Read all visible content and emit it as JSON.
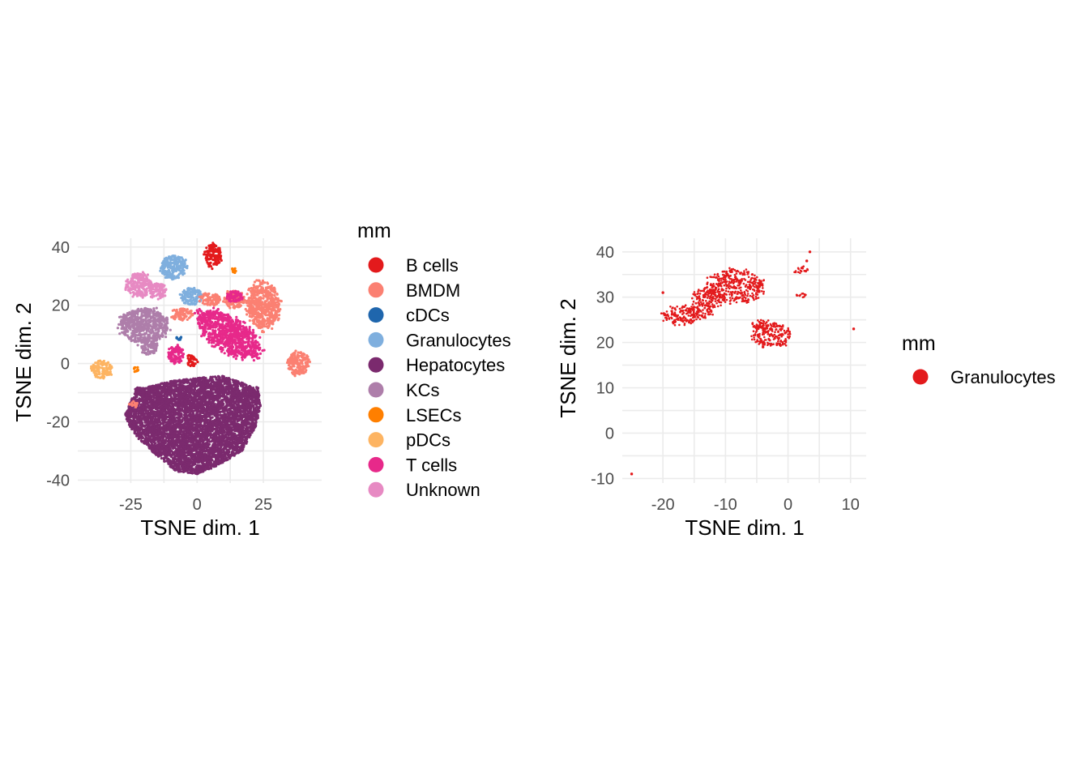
{
  "chart_data": [
    {
      "type": "scatter",
      "xlabel": "TSNE dim. 1",
      "ylabel": "TSNE dim. 2",
      "xlim": [
        -45,
        47
      ],
      "ylim": [
        -41,
        43
      ],
      "xticks": [
        -25,
        0,
        25
      ],
      "yticks": [
        -40,
        -20,
        0,
        20,
        40
      ],
      "grid": true,
      "legend": {
        "title": "mm",
        "placement": "right",
        "entries": [
          {
            "name": "B cells",
            "color": "#e31a1c"
          },
          {
            "name": "BMDM",
            "color": "#fb8072"
          },
          {
            "name": "cDCs",
            "color": "#1f66ad"
          },
          {
            "name": "Granulocytes",
            "color": "#7fafde"
          },
          {
            "name": "Hepatocytes",
            "color": "#7b2a6e"
          },
          {
            "name": "KCs",
            "color": "#ae7eaa"
          },
          {
            "name": "LSECs",
            "color": "#ff7f00"
          },
          {
            "name": "pDCs",
            "color": "#fdb462"
          },
          {
            "name": "T cells",
            "color": "#e7298a"
          },
          {
            "name": "Unknown",
            "color": "#e78ac3"
          }
        ]
      },
      "clusters": [
        {
          "series": "Hepatocytes",
          "shape": "polygon",
          "outline": [
            [
              -27,
              -17
            ],
            [
              -23,
              -9
            ],
            [
              -10,
              -6
            ],
            [
              0,
              -5
            ],
            [
              10,
              -4
            ],
            [
              18,
              -7
            ],
            [
              23,
              -8
            ],
            [
              24,
              -15
            ],
            [
              22,
              -22
            ],
            [
              17,
              -30
            ],
            [
              8,
              -35
            ],
            [
              0,
              -38
            ],
            [
              -8,
              -37
            ],
            [
              -16,
              -31
            ],
            [
              -23,
              -25
            ],
            [
              -27,
              -19
            ]
          ]
        },
        {
          "series": "Hepatocytes",
          "shape": "ellipse",
          "cx": -22,
          "cy": -9,
          "rx": 2,
          "ry": 1
        },
        {
          "series": "KCs",
          "shape": "ellipse",
          "cx": -20,
          "cy": 13,
          "rx": 9,
          "ry": 6
        },
        {
          "series": "KCs",
          "shape": "ellipse",
          "cx": -18,
          "cy": 6,
          "rx": 3,
          "ry": 3
        },
        {
          "series": "Unknown",
          "shape": "ellipse",
          "cx": -22,
          "cy": 27,
          "rx": 5,
          "ry": 4
        },
        {
          "series": "Unknown",
          "shape": "ellipse",
          "cx": -15,
          "cy": 25,
          "rx": 3,
          "ry": 3
        },
        {
          "series": "Granulocytes",
          "shape": "ellipse",
          "cx": -9,
          "cy": 33,
          "rx": 5,
          "ry": 4
        },
        {
          "series": "Granulocytes",
          "shape": "ellipse",
          "cx": -2,
          "cy": 23,
          "rx": 4,
          "ry": 3
        },
        {
          "series": "B cells",
          "shape": "ellipse",
          "cx": 6,
          "cy": 37,
          "rx": 3,
          "ry": 4
        },
        {
          "series": "BMDM",
          "shape": "ellipse",
          "cx": 25,
          "cy": 20,
          "rx": 6,
          "ry": 8
        },
        {
          "series": "BMDM",
          "shape": "ellipse",
          "cx": 38,
          "cy": 0,
          "rx": 4,
          "ry": 4
        },
        {
          "series": "BMDM",
          "shape": "ellipse",
          "cx": 14,
          "cy": 22,
          "rx": 4,
          "ry": 3
        },
        {
          "series": "BMDM",
          "shape": "ellipse",
          "cx": -6,
          "cy": 17,
          "rx": 4,
          "ry": 2
        },
        {
          "series": "BMDM",
          "shape": "ellipse",
          "cx": 5,
          "cy": 22,
          "rx": 4,
          "ry": 2
        },
        {
          "series": "BMDM",
          "shape": "ellipse",
          "cx": -24,
          "cy": -14,
          "rx": 1.5,
          "ry": 1
        },
        {
          "series": "T cells",
          "shape": "ellipse",
          "cx": 12,
          "cy": 10,
          "rx": 13,
          "ry": 6,
          "angle": -28
        },
        {
          "series": "T cells",
          "shape": "ellipse",
          "cx": -8,
          "cy": 3,
          "rx": 3,
          "ry": 3
        },
        {
          "series": "T cells",
          "shape": "ellipse",
          "cx": 14,
          "cy": 23,
          "rx": 3,
          "ry": 2
        },
        {
          "series": "B cells",
          "shape": "ellipse",
          "cx": -2,
          "cy": 1,
          "rx": 2,
          "ry": 2
        },
        {
          "series": "pDCs",
          "shape": "ellipse",
          "cx": -36,
          "cy": -2,
          "rx": 4,
          "ry": 3
        },
        {
          "series": "LSECs",
          "shape": "ellipse",
          "cx": -23,
          "cy": -2,
          "rx": 1,
          "ry": 1
        },
        {
          "series": "LSECs",
          "shape": "ellipse",
          "cx": 14,
          "cy": 32,
          "rx": 1,
          "ry": 1
        },
        {
          "series": "cDCs",
          "shape": "ellipse",
          "cx": -7,
          "cy": 9,
          "rx": 1,
          "ry": 1
        }
      ]
    },
    {
      "type": "scatter",
      "xlabel": "TSNE dim. 1",
      "ylabel": "TSNE dim. 2",
      "xlim": [
        -26.5,
        12.5
      ],
      "ylim": [
        -11,
        43
      ],
      "xticks": [
        -20,
        -10,
        0,
        10
      ],
      "yticks": [
        -10,
        0,
        10,
        20,
        30,
        40
      ],
      "grid": true,
      "legend": {
        "title": "mm",
        "placement": "right",
        "entries": [
          {
            "name": "Granulocytes",
            "color": "#e31a1c"
          }
        ]
      },
      "clusters": [
        {
          "series": "Granulocytes",
          "shape": "ellipse",
          "cx": -8.5,
          "cy": 32.5,
          "rx": 4.5,
          "ry": 3.5
        },
        {
          "series": "Granulocytes",
          "shape": "ellipse",
          "cx": -12.5,
          "cy": 30,
          "rx": 2.5,
          "ry": 2
        },
        {
          "series": "Granulocytes",
          "shape": "ellipse",
          "cx": -2.5,
          "cy": 21.5,
          "rx": 3,
          "ry": 2.5
        },
        {
          "series": "Granulocytes",
          "shape": "ellipse",
          "cx": -4,
          "cy": 24,
          "rx": 2,
          "ry": 1
        },
        {
          "series": "Granulocytes",
          "shape": "ellipse",
          "cx": -17,
          "cy": 26,
          "rx": 3,
          "ry": 2
        },
        {
          "series": "Granulocytes",
          "shape": "ellipse",
          "cx": -14,
          "cy": 27,
          "rx": 2,
          "ry": 1.5
        },
        {
          "series": "Granulocytes",
          "shape": "ellipse",
          "cx": 2,
          "cy": 36,
          "rx": 1,
          "ry": 0.8
        },
        {
          "series": "Granulocytes",
          "shape": "ellipse",
          "cx": 2,
          "cy": 30.5,
          "rx": 0.8,
          "ry": 0.6
        },
        {
          "series": "Granulocytes",
          "shape": "points",
          "points": [
            [
              -25,
              -9
            ],
            [
              3.5,
              40
            ],
            [
              10.5,
              23
            ],
            [
              -20,
              31
            ],
            [
              -4,
              19
            ],
            [
              3,
              38
            ]
          ]
        }
      ]
    }
  ]
}
